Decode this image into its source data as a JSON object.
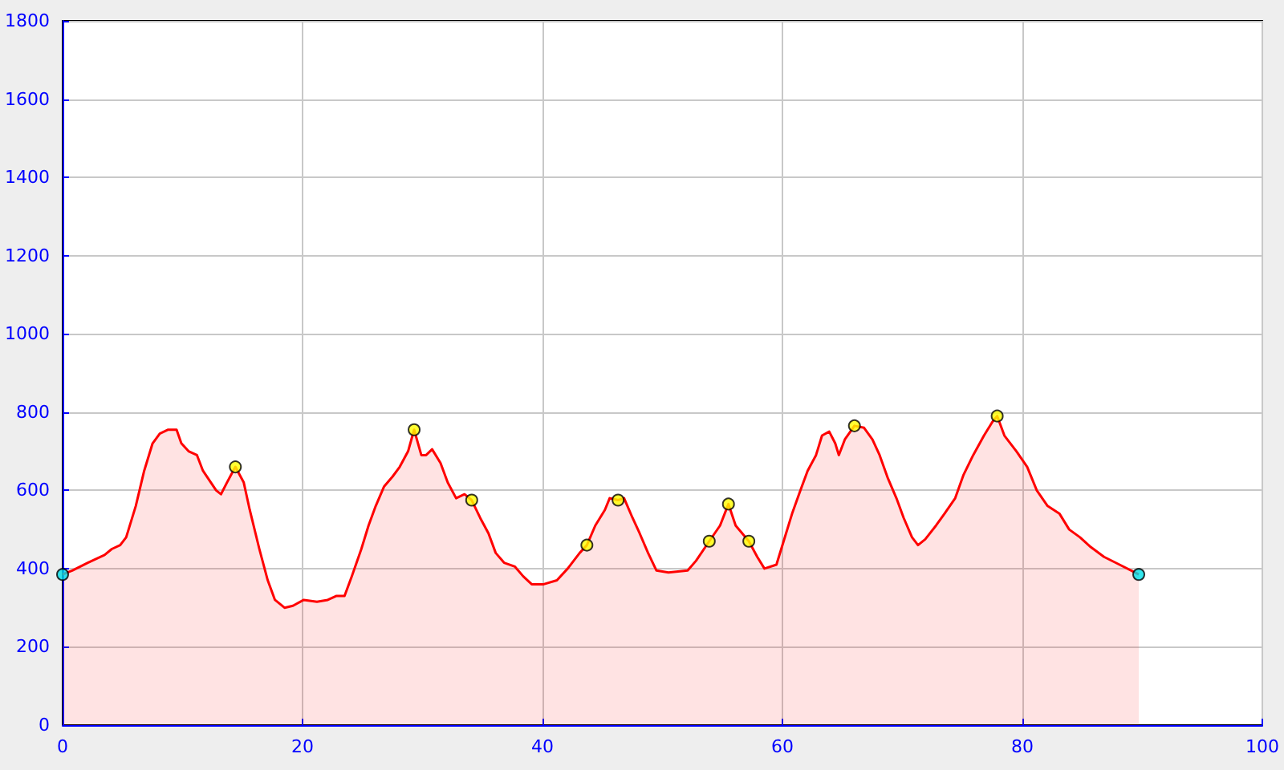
{
  "chart_data": {
    "type": "area",
    "xlim": [
      0,
      100
    ],
    "xticks": [
      0,
      20,
      40,
      60,
      80,
      100
    ],
    "ylim": [
      0,
      1800
    ],
    "yticks": [
      0,
      200,
      400,
      600,
      800,
      1000,
      1200,
      1400,
      1600,
      1800
    ],
    "grid": true,
    "series": [
      {
        "color": "#ff0000",
        "marker": "none",
        "x": [
          0,
          0.8,
          2.1,
          3.5,
          4.1,
          4.8,
          5.3,
          6.1,
          6.8,
          7.5,
          8.1,
          8.8,
          9.5,
          9.9,
          10.5,
          11.2,
          11.7,
          12.8,
          13.2,
          13.7,
          14.4,
          15.1,
          15.6,
          16.4,
          17.1,
          17.7,
          18.5,
          19.2,
          20.1,
          21.2,
          22.1,
          22.8,
          23.5,
          24.1,
          24.9,
          25.5,
          26.1,
          26.8,
          27.5,
          28.1,
          28.8,
          29.3,
          29.9,
          30.3,
          30.8,
          31.5,
          32.1,
          32.8,
          33.5,
          34.1,
          34.8,
          35.5,
          36.1,
          36.8,
          37.7,
          38.4,
          39.1,
          40.1,
          41.2,
          42.1,
          43.1,
          43.7,
          44.4,
          45.2,
          45.6,
          46.3,
          46.8,
          47.5,
          48.1,
          48.8,
          49.5,
          50.5,
          52.1,
          52.8,
          53.9,
          54.8,
          55.5,
          56.1,
          57.2,
          57.9,
          58.5,
          59.5,
          60.1,
          60.8,
          61.5,
          62.1,
          62.8,
          63.3,
          63.9,
          64.4,
          64.7,
          65.2,
          66.0,
          66.8,
          67.5,
          68.1,
          68.8,
          69.5,
          70.1,
          70.8,
          71.3,
          71.9,
          72.8,
          73.5,
          74.4,
          75.1,
          75.9,
          76.8,
          77.5,
          77.9,
          78.5,
          79.5,
          80.4,
          81.2,
          82.1,
          83.1,
          83.9,
          84.8,
          85.7,
          86.8,
          88.1,
          89.7
        ],
        "values": [
          385,
          395,
          415,
          435,
          450,
          460,
          480,
          560,
          650,
          720,
          745,
          755,
          755,
          720,
          700,
          690,
          650,
          600,
          590,
          620,
          660,
          620,
          550,
          450,
          370,
          320,
          300,
          305,
          320,
          315,
          320,
          330,
          330,
          380,
          450,
          510,
          560,
          610,
          635,
          660,
          700,
          755,
          690,
          690,
          705,
          670,
          620,
          580,
          590,
          575,
          530,
          490,
          440,
          415,
          405,
          380,
          360,
          360,
          370,
          400,
          440,
          460,
          510,
          550,
          580,
          575,
          580,
          530,
          490,
          440,
          395,
          390,
          395,
          420,
          470,
          510,
          565,
          510,
          470,
          430,
          400,
          410,
          470,
          540,
          600,
          650,
          690,
          740,
          750,
          720,
          690,
          730,
          765,
          760,
          730,
          690,
          630,
          580,
          530,
          480,
          460,
          475,
          510,
          540,
          580,
          640,
          690,
          740,
          775,
          790,
          740,
          700,
          660,
          600,
          560,
          540,
          500,
          480,
          455,
          430,
          410,
          385
        ]
      },
      {
        "type": "scatter",
        "color": "#ffff00",
        "marker": "circle",
        "x": [
          14.4,
          29.3,
          34.1,
          43.7,
          46.3,
          53.9,
          55.5,
          57.2,
          66.0,
          77.9
        ],
        "values": [
          660,
          755,
          575,
          460,
          575,
          470,
          565,
          470,
          765,
          790
        ]
      },
      {
        "type": "scatter",
        "color": "#00e0e8",
        "marker": "circle",
        "x": [
          0,
          89.7
        ],
        "values": [
          385,
          385
        ]
      }
    ]
  }
}
